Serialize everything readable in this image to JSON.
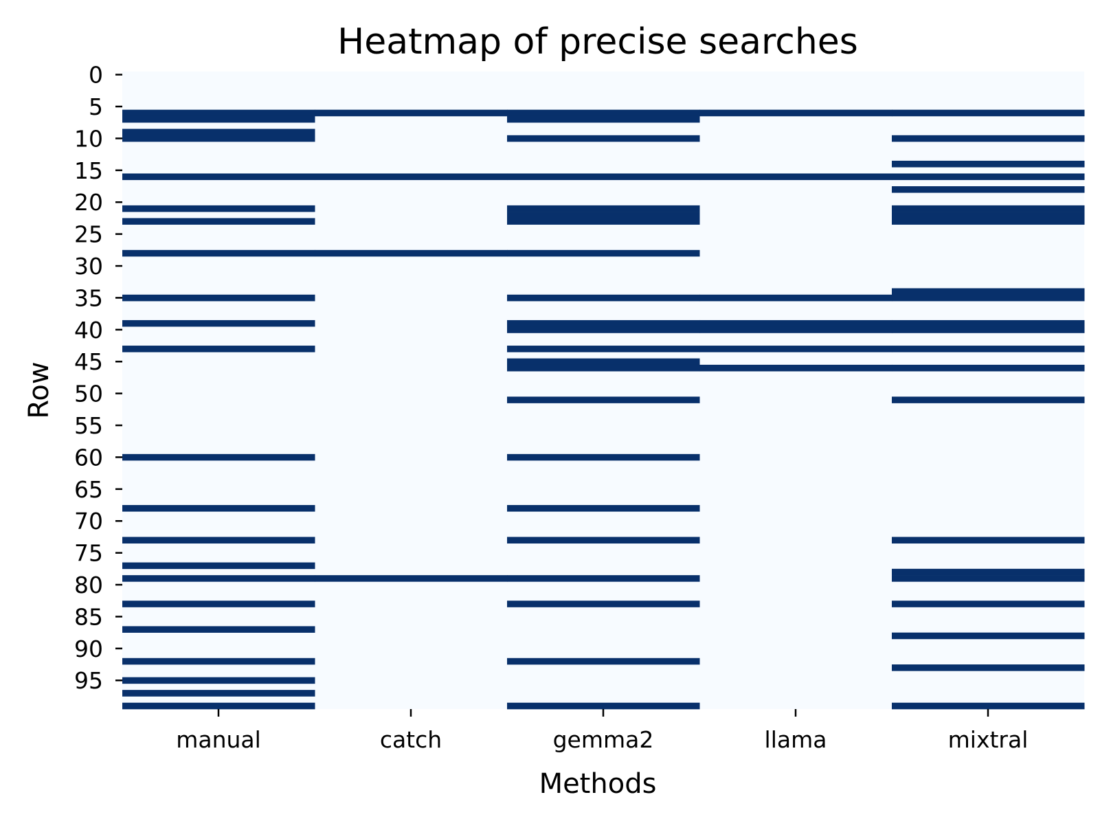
{
  "chart_data": {
    "type": "heatmap",
    "title": "Heatmap of precise searches",
    "xlabel": "Methods",
    "ylabel": "Row",
    "categories": [
      "manual",
      "catch",
      "gemma2",
      "llama",
      "mixtral"
    ],
    "row_count": 100,
    "y_ticks": [
      0,
      5,
      10,
      15,
      20,
      25,
      30,
      35,
      40,
      45,
      50,
      55,
      60,
      65,
      70,
      75,
      80,
      85,
      90,
      95
    ],
    "binary_values": [
      0,
      1
    ],
    "colors": {
      "low": "#f7fbff",
      "high": "#08306b"
    },
    "grid": false,
    "colorbar": false,
    "series": [
      {
        "name": "manual",
        "positive_rows": [
          6,
          7,
          9,
          10,
          16,
          21,
          23,
          28,
          35,
          39,
          43,
          60,
          68,
          73,
          77,
          79,
          83,
          87,
          92,
          95,
          97,
          99
        ]
      },
      {
        "name": "catch",
        "positive_rows": [
          6,
          16,
          28,
          79
        ]
      },
      {
        "name": "gemma2",
        "positive_rows": [
          6,
          7,
          10,
          16,
          21,
          22,
          23,
          28,
          35,
          39,
          40,
          43,
          45,
          46,
          51,
          60,
          68,
          73,
          79,
          83,
          92,
          99
        ]
      },
      {
        "name": "llama",
        "positive_rows": [
          6,
          16,
          35,
          39,
          40,
          43,
          46
        ]
      },
      {
        "name": "mixtral",
        "positive_rows": [
          6,
          10,
          14,
          16,
          18,
          21,
          22,
          23,
          34,
          35,
          39,
          40,
          43,
          46,
          51,
          73,
          78,
          79,
          83,
          88,
          93,
          99
        ]
      }
    ]
  }
}
